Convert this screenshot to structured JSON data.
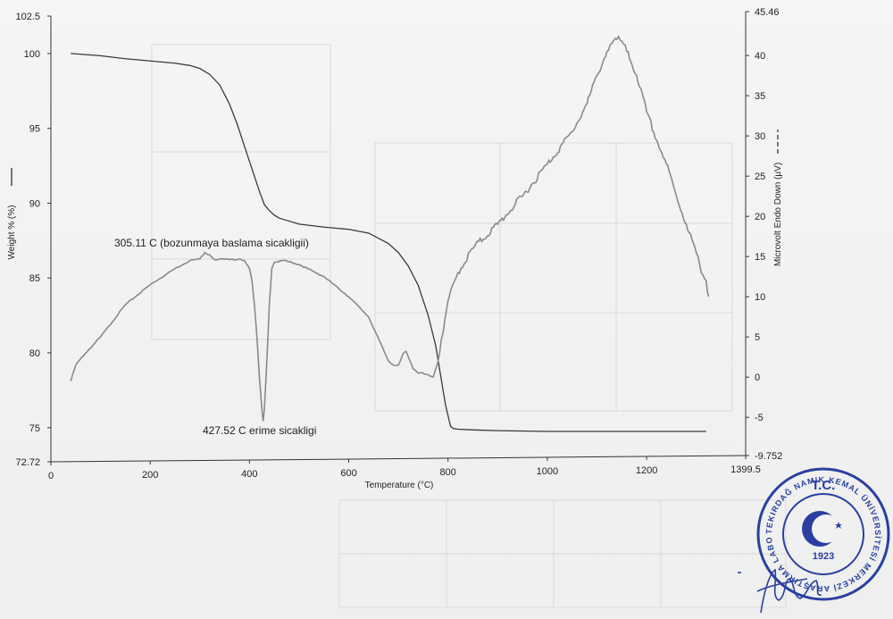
{
  "chart_data": {
    "type": "line",
    "title": "",
    "xlabel": "Temperature (°C)",
    "xlim": [
      0,
      1399.5
    ],
    "x_ticks": [
      "0",
      "200",
      "400",
      "600",
      "800",
      "1000",
      "1200",
      "1399.5"
    ],
    "left_axis": {
      "label": "Weight % (%)",
      "ylim": [
        72.72,
        102.5
      ],
      "ticks": [
        "72.72",
        "75",
        "80",
        "85",
        "90",
        "95",
        "100",
        "102.5"
      ]
    },
    "right_axis": {
      "label": "Microvolt Endo Down (µV)",
      "ylim": [
        -9.752,
        45.46
      ],
      "ticks": [
        "-9.752",
        "-5",
        "0",
        "5",
        "10",
        "15",
        "20",
        "25",
        "30",
        "35",
        "40",
        "45.46"
      ]
    },
    "series": [
      {
        "axis": "left",
        "color": "#3a3a3a",
        "x": [
          40,
          100,
          150,
          200,
          250,
          280,
          300,
          320,
          340,
          360,
          375,
          390,
          400,
          410,
          420,
          430,
          440,
          450,
          460,
          480,
          500,
          550,
          600,
          640,
          680,
          700,
          720,
          740,
          760,
          775,
          785,
          795,
          805,
          810,
          820,
          850,
          900,
          1000,
          1100,
          1200,
          1320
        ],
        "values": [
          100.0,
          99.85,
          99.65,
          99.5,
          99.35,
          99.2,
          99.0,
          98.6,
          97.9,
          96.6,
          95.3,
          93.8,
          92.8,
          91.8,
          90.8,
          89.9,
          89.5,
          89.2,
          89.0,
          88.8,
          88.6,
          88.4,
          88.25,
          88.0,
          87.3,
          86.7,
          85.8,
          84.5,
          82.5,
          80.5,
          78.5,
          76.5,
          75.1,
          74.95,
          74.9,
          74.85,
          74.8,
          74.75,
          74.75,
          74.75,
          74.75
        ]
      },
      {
        "axis": "right",
        "color": "#8a8a8a",
        "x": [
          40,
          50,
          70,
          100,
          150,
          200,
          250,
          280,
          300,
          310,
          320,
          330,
          340,
          360,
          380,
          390,
          400,
          405,
          410,
          415,
          420,
          425,
          427.52,
          430,
          435,
          440,
          445,
          450,
          470,
          500,
          550,
          600,
          640,
          680,
          690,
          700,
          710,
          715,
          720,
          730,
          740,
          750,
          760,
          770,
          780,
          790,
          800,
          820,
          850,
          900,
          950,
          1000,
          1050,
          1080,
          1100,
          1120,
          1130,
          1140,
          1150,
          1160,
          1180,
          1200,
          1220,
          1240,
          1260,
          1280,
          1300,
          1310,
          1320,
          1325
        ],
        "values": [
          -0.5,
          1.5,
          3.0,
          5.0,
          9.0,
          11.5,
          13.5,
          14.5,
          14.7,
          15.5,
          15.2,
          14.6,
          14.7,
          14.6,
          14.7,
          14.5,
          13.5,
          12.0,
          9.0,
          5.0,
          0.0,
          -4.0,
          -5.5,
          -4.0,
          2.0,
          9.0,
          13.5,
          14.3,
          14.5,
          14.0,
          12.5,
          10.0,
          7.5,
          2.0,
          1.5,
          1.5,
          3.0,
          3.2,
          2.5,
          1.0,
          0.5,
          0.5,
          0.3,
          0.0,
          2.0,
          5.5,
          9.5,
          13.0,
          16.0,
          19.0,
          22.5,
          26.5,
          30.5,
          34.0,
          37.5,
          40.5,
          41.5,
          42.0,
          41.8,
          40.5,
          37.5,
          33.0,
          29.5,
          26.5,
          22.5,
          19.0,
          15.5,
          13.0,
          12.0,
          10.0
        ]
      }
    ],
    "annotations": [
      {
        "text": "305.11 C (bozunmaya baslama sicakligii)",
        "x": 305.11
      },
      {
        "text": "427.52 C erime sicakligi",
        "x": 427.52
      }
    ],
    "grid": false,
    "legend": "none"
  },
  "stamp": {
    "top": "T.C.",
    "ring": "TEKIRDAĞ NAMIK KEMAL ÜNİVERSİTESİ MERKEZİ ARAŞTIRMA LABORATUVARI",
    "year": "1923",
    "color": "#2a3fa0"
  }
}
